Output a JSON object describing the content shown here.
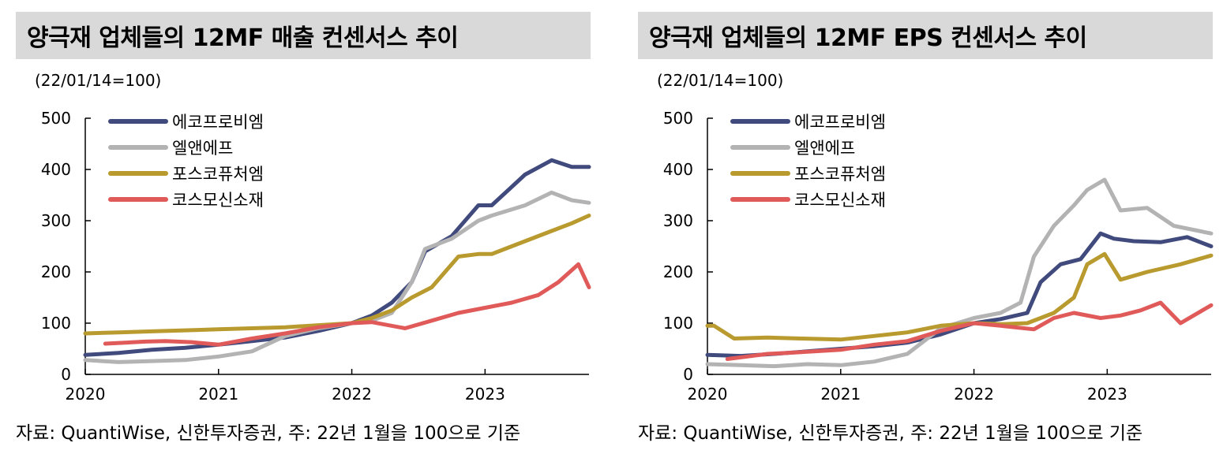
{
  "colors": {
    "ecopro": "#404a7c",
    "ln": "#b3b3b3",
    "posco": "#b89a2e",
    "cosmo": "#e05a5a",
    "title_bg": "#d9d9d9"
  },
  "chart_data": [
    {
      "type": "line",
      "title": "양극재 업체들의 12MF 매출 컨센서스 추이",
      "unit": "(22/01/14=100)",
      "source": "자료: QuantiWise, 신한투자증권, 주: 22년 1월을 100으로 기준",
      "xlabel": "",
      "ylabel": "",
      "xlim": [
        2020.0,
        2023.78
      ],
      "ylim": [
        0,
        500
      ],
      "yticks": [
        "0",
        "100",
        "200",
        "300",
        "400",
        "500"
      ],
      "xticks": [
        "2020",
        "2021",
        "2022",
        "2023"
      ],
      "legend_position": "top-left",
      "series": [
        {
          "name": "에코프로비엠",
          "color_key": "ecopro",
          "x": [
            2020.0,
            2020.25,
            2020.5,
            2020.75,
            2021.0,
            2021.25,
            2021.5,
            2021.75,
            2022.0,
            2022.15,
            2022.3,
            2022.45,
            2022.55,
            2022.75,
            2022.95,
            2023.05,
            2023.3,
            2023.5,
            2023.65,
            2023.78
          ],
          "y": [
            38,
            42,
            48,
            52,
            58,
            65,
            72,
            85,
            100,
            115,
            140,
            180,
            240,
            270,
            330,
            330,
            390,
            418,
            405,
            405
          ]
        },
        {
          "name": "엘앤에프",
          "color_key": "ln",
          "x": [
            2020.0,
            2020.25,
            2020.5,
            2020.75,
            2021.0,
            2021.25,
            2021.5,
            2021.75,
            2022.0,
            2022.15,
            2022.3,
            2022.45,
            2022.55,
            2022.75,
            2022.95,
            2023.05,
            2023.3,
            2023.5,
            2023.65,
            2023.78
          ],
          "y": [
            28,
            24,
            26,
            28,
            35,
            45,
            75,
            90,
            100,
            105,
            120,
            180,
            245,
            265,
            300,
            310,
            330,
            355,
            340,
            335
          ]
        },
        {
          "name": "포스코퓨처엠",
          "color_key": "posco",
          "x": [
            2020.0,
            2020.25,
            2020.5,
            2020.75,
            2021.0,
            2021.25,
            2021.5,
            2021.75,
            2022.0,
            2022.15,
            2022.3,
            2022.45,
            2022.6,
            2022.8,
            2022.95,
            2023.05,
            2023.3,
            2023.5,
            2023.65,
            2023.78
          ],
          "y": [
            80,
            82,
            84,
            86,
            88,
            90,
            92,
            96,
            100,
            110,
            125,
            150,
            170,
            230,
            235,
            235,
            260,
            280,
            295,
            310
          ]
        },
        {
          "name": "코스모신소재",
          "color_key": "cosmo",
          "x": [
            2020.15,
            2020.3,
            2020.45,
            2020.6,
            2020.8,
            2021.0,
            2021.25,
            2021.5,
            2021.75,
            2022.0,
            2022.15,
            2022.4,
            2022.6,
            2022.8,
            2023.0,
            2023.2,
            2023.4,
            2023.55,
            2023.7,
            2023.78
          ],
          "y": [
            60,
            62,
            64,
            65,
            63,
            58,
            70,
            80,
            92,
            100,
            102,
            90,
            105,
            120,
            130,
            140,
            155,
            180,
            215,
            170
          ]
        }
      ]
    },
    {
      "type": "line",
      "title": "양극재 업체들의 12MF EPS 컨센서스 추이",
      "unit": "(22/01/14=100)",
      "source": "자료: QuantiWise, 신한투자증권, 주: 22년 1월을 100으로 기준",
      "xlabel": "",
      "ylabel": "",
      "xlim": [
        2020.0,
        2023.78
      ],
      "ylim": [
        0,
        500
      ],
      "yticks": [
        "0",
        "100",
        "200",
        "300",
        "400",
        "500"
      ],
      "xticks": [
        "2020",
        "2021",
        "2022",
        "2023"
      ],
      "legend_position": "top-left",
      "series": [
        {
          "name": "에코프로비엠",
          "color_key": "ecopro",
          "x": [
            2020.0,
            2020.25,
            2020.5,
            2020.75,
            2021.0,
            2021.25,
            2021.5,
            2021.75,
            2022.0,
            2022.2,
            2022.4,
            2022.5,
            2022.65,
            2022.8,
            2022.95,
            2023.05,
            2023.2,
            2023.4,
            2023.6,
            2023.78
          ],
          "y": [
            38,
            36,
            40,
            45,
            50,
            55,
            62,
            78,
            100,
            108,
            120,
            180,
            215,
            225,
            275,
            265,
            260,
            258,
            268,
            250
          ]
        },
        {
          "name": "엘앤에프",
          "color_key": "ln",
          "x": [
            2020.0,
            2020.25,
            2020.5,
            2020.75,
            2021.0,
            2021.25,
            2021.5,
            2021.75,
            2022.0,
            2022.2,
            2022.35,
            2022.45,
            2022.6,
            2022.75,
            2022.85,
            2022.98,
            2023.1,
            2023.3,
            2023.5,
            2023.78
          ],
          "y": [
            20,
            18,
            16,
            20,
            18,
            25,
            40,
            90,
            110,
            120,
            140,
            230,
            290,
            330,
            360,
            380,
            320,
            325,
            290,
            275
          ]
        },
        {
          "name": "포스코퓨처엠",
          "color_key": "posco",
          "x": [
            2020.0,
            2020.05,
            2020.2,
            2020.45,
            2020.7,
            2021.0,
            2021.25,
            2021.5,
            2021.75,
            2022.0,
            2022.2,
            2022.4,
            2022.6,
            2022.75,
            2022.85,
            2022.98,
            2023.1,
            2023.3,
            2023.55,
            2023.78
          ],
          "y": [
            95,
            95,
            70,
            72,
            70,
            68,
            75,
            82,
            95,
            100,
            98,
            100,
            120,
            150,
            215,
            235,
            185,
            200,
            215,
            232
          ]
        },
        {
          "name": "코스모신소재",
          "color_key": "cosmo",
          "x": [
            2020.15,
            2020.3,
            2020.45,
            2020.6,
            2020.8,
            2021.0,
            2021.25,
            2021.5,
            2021.75,
            2022.0,
            2022.2,
            2022.45,
            2022.6,
            2022.75,
            2022.95,
            2023.1,
            2023.25,
            2023.4,
            2023.55,
            2023.78
          ],
          "y": [
            30,
            35,
            40,
            42,
            45,
            48,
            58,
            65,
            85,
            100,
            95,
            88,
            110,
            120,
            110,
            115,
            125,
            140,
            100,
            135
          ]
        }
      ]
    }
  ]
}
